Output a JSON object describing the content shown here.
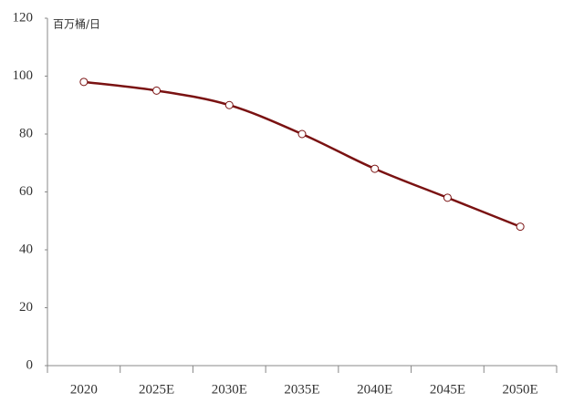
{
  "chart_data": {
    "type": "line",
    "y_label": "百万桶/日",
    "categories": [
      "2020",
      "2025E",
      "2030E",
      "2035E",
      "2040E",
      "2045E",
      "2050E"
    ],
    "values": [
      98,
      95,
      90,
      80,
      68,
      58,
      48
    ],
    "color": "#7a1212",
    "marker_fill": "#ffffff",
    "smooth": true,
    "ylim": [
      0,
      120
    ],
    "yticks": [
      0,
      20,
      40,
      60,
      80,
      100,
      120
    ],
    "grid": false
  }
}
